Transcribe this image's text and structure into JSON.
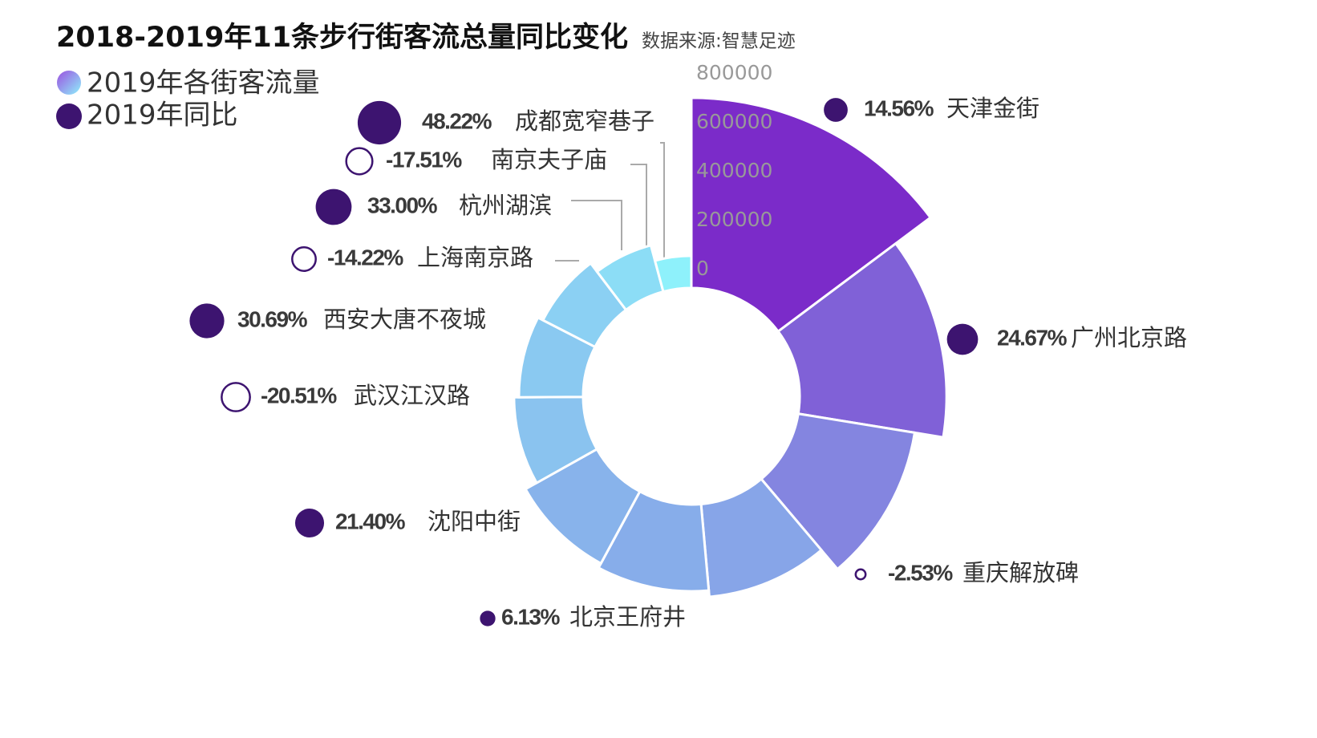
{
  "chart_data": {
    "type": "polar-bar",
    "title": "2018-2019年11条步行街客流总量同比变化",
    "subtitle": "数据来源:智慧足迹",
    "categories": [
      "天津金街",
      "广州北京路",
      "重庆解放碑",
      "北京王府井",
      "沈阳中街",
      "武汉江汉路",
      "西安大唐不夜城",
      "上海南京路",
      "杭州湖滨",
      "南京夫子庙",
      "成都宽窄巷子"
    ],
    "series": [
      {
        "name": "2019年各街客流量",
        "color": [
          "#8ef1fb",
          "#7b2bc9"
        ],
        "values": [
          702000,
          525000,
          407000,
          305000,
          279000,
          259000,
          207000,
          187000,
          164000,
          121000,
          56000
        ]
      },
      {
        "name": "2019年同比",
        "color": "#3d1470",
        "values": [
          14.56,
          24.67,
          -2.53,
          6.13,
          21.4,
          -20.51,
          30.69,
          -14.22,
          33.0,
          -17.51,
          48.22
        ],
        "value_labels": [
          "14.56%",
          "24.67%",
          "-2.53%",
          "6.13%",
          "21.40%",
          "-20.51%",
          "30.69%",
          "-14.22%",
          "33.00%",
          "-17.51%",
          "48.22%"
        ]
      }
    ],
    "rlim": [
      0,
      800000
    ],
    "rticks": [
      0,
      200000,
      400000,
      600000,
      800000
    ]
  }
}
